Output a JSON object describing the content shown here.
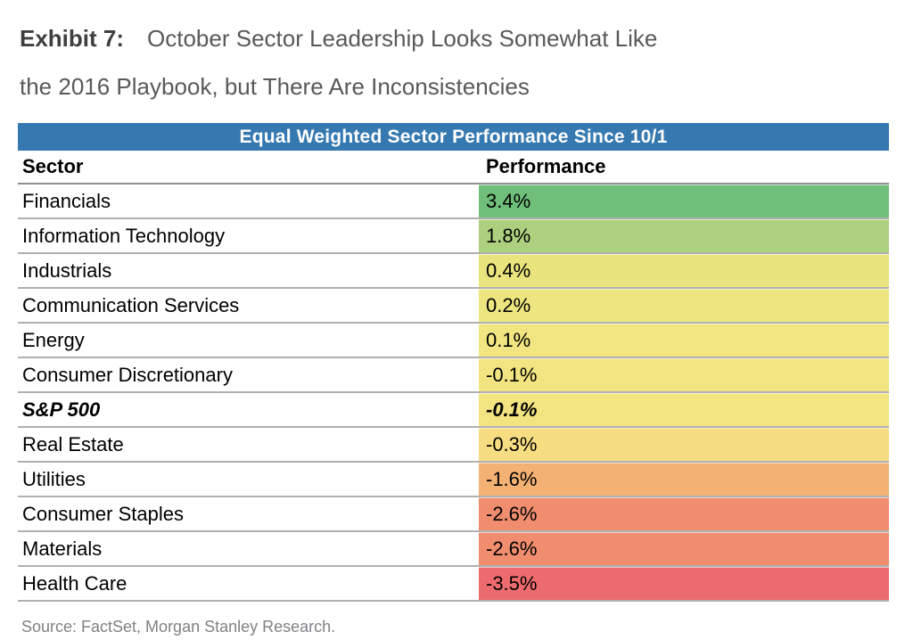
{
  "title": {
    "exhibit_label": "Exhibit 7:",
    "line1": "October Sector Leadership Looks Somewhat Like",
    "line2": "the 2016 Playbook, but There Are Inconsistencies"
  },
  "table": {
    "banner": "Equal Weighted Sector Performance Since 10/1",
    "columns": {
      "sector": "Sector",
      "performance": "Performance"
    },
    "rows": [
      {
        "sector": "Financials",
        "performance": "3.4%",
        "color": "#6fbf7b",
        "emphasis": false
      },
      {
        "sector": "Information Technology",
        "performance": "1.8%",
        "color": "#add07e",
        "emphasis": false
      },
      {
        "sector": "Industrials",
        "performance": "0.4%",
        "color": "#e9e47d",
        "emphasis": false
      },
      {
        "sector": "Communication Services",
        "performance": "0.2%",
        "color": "#ede57f",
        "emphasis": false
      },
      {
        "sector": "Energy",
        "performance": "0.1%",
        "color": "#f0e580",
        "emphasis": false
      },
      {
        "sector": "Consumer Discretionary",
        "performance": "-0.1%",
        "color": "#f2e481",
        "emphasis": false
      },
      {
        "sector": "S&P 500",
        "performance": "-0.1%",
        "color": "#f2e481",
        "emphasis": true
      },
      {
        "sector": "Real Estate",
        "performance": "-0.3%",
        "color": "#f7dd81",
        "emphasis": false
      },
      {
        "sector": "Utilities",
        "performance": "-1.6%",
        "color": "#f3b273",
        "emphasis": false
      },
      {
        "sector": "Consumer Staples",
        "performance": "-2.6%",
        "color": "#ef8d6e",
        "emphasis": false
      },
      {
        "sector": "Materials",
        "performance": "-2.6%",
        "color": "#ef8d6e",
        "emphasis": false
      },
      {
        "sector": "Health Care",
        "performance": "-3.5%",
        "color": "#ed6b6e",
        "emphasis": false
      }
    ]
  },
  "source": "Source: FactSet, Morgan Stanley Research.",
  "colors": {
    "banner_blue": "#3679b1",
    "positive_green": "#6fbf7b",
    "neutral_yellow": "#f0e580",
    "negative_red": "#ed6b6e",
    "title_gray": "#58595b",
    "source_gray": "#808184",
    "separator_gray": "#b0b0b0"
  },
  "chart_data": {
    "type": "table",
    "title": "Equal Weighted Sector Performance Since 10/1",
    "columns": [
      "Sector",
      "Performance"
    ],
    "categories": [
      "Financials",
      "Information Technology",
      "Industrials",
      "Communication Services",
      "Energy",
      "Consumer Discretionary",
      "S&P 500",
      "Real Estate",
      "Utilities",
      "Consumer Staples",
      "Materials",
      "Health Care"
    ],
    "values": [
      3.4,
      1.8,
      0.4,
      0.2,
      0.1,
      -0.1,
      -0.1,
      -0.3,
      -1.6,
      -2.6,
      -2.6,
      -3.5
    ],
    "value_unit": "percent",
    "benchmark_row": "S&P 500",
    "color_scale": "green (best) to yellow (flat) to red (worst) heatmap on Performance column",
    "exhibit_caption": "Exhibit 7: October Sector Leadership Looks Somewhat Like the 2016 Playbook, but There Are Inconsistencies",
    "source_note": "Source: FactSet, Morgan Stanley Research."
  }
}
